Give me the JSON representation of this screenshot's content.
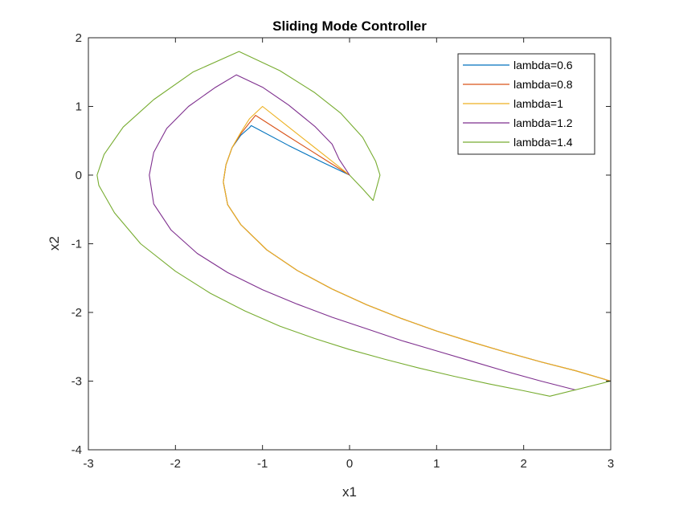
{
  "chart_data": {
    "type": "line",
    "title": "Sliding Mode Controller",
    "xlabel": "x1",
    "ylabel": "x2",
    "xlim": [
      -3,
      3
    ],
    "ylim": [
      -4,
      2
    ],
    "xticks": [
      "-3",
      "-2",
      "-1",
      "0",
      "1",
      "2",
      "3"
    ],
    "yticks": [
      "-4",
      "-3",
      "-2",
      "-1",
      "0",
      "1",
      "2"
    ],
    "grid": false,
    "legend_position": "top-right",
    "series": [
      {
        "name": "lambda=0.6",
        "color": "#0072BD",
        "x": [
          3,
          2.6,
          2.2,
          1.8,
          1.4,
          1.0,
          0.6,
          0.2,
          -0.2,
          -0.6,
          -0.95,
          -1.25,
          -1.4,
          -1.45,
          -1.42,
          -1.35,
          -1.25,
          -1.15,
          -1.13,
          -0.7,
          -0.3,
          0
        ],
        "y": [
          -3.0,
          -2.85,
          -2.72,
          -2.58,
          -2.43,
          -2.27,
          -2.09,
          -1.89,
          -1.66,
          -1.39,
          -1.09,
          -0.72,
          -0.43,
          -0.1,
          0.15,
          0.4,
          0.58,
          0.69,
          0.72,
          0.43,
          0.18,
          0
        ]
      },
      {
        "name": "lambda=0.8",
        "color": "#D95319",
        "x": [
          3,
          2.6,
          2.2,
          1.8,
          1.4,
          1.0,
          0.6,
          0.2,
          -0.2,
          -0.6,
          -0.95,
          -1.25,
          -1.4,
          -1.45,
          -1.42,
          -1.35,
          -1.25,
          -1.15,
          -1.08,
          -0.7,
          -0.3,
          0
        ],
        "y": [
          -3.0,
          -2.85,
          -2.72,
          -2.58,
          -2.43,
          -2.27,
          -2.09,
          -1.89,
          -1.66,
          -1.39,
          -1.09,
          -0.72,
          -0.43,
          -0.1,
          0.15,
          0.4,
          0.6,
          0.76,
          0.87,
          0.56,
          0.24,
          0
        ]
      },
      {
        "name": "lambda=1",
        "color": "#EDB120",
        "x": [
          3,
          2.6,
          2.2,
          1.8,
          1.4,
          1.0,
          0.6,
          0.2,
          -0.2,
          -0.6,
          -0.95,
          -1.25,
          -1.4,
          -1.45,
          -1.42,
          -1.35,
          -1.25,
          -1.15,
          -1.0,
          -0.7,
          -0.3,
          0
        ],
        "y": [
          -3.0,
          -2.85,
          -2.72,
          -2.58,
          -2.43,
          -2.27,
          -2.09,
          -1.89,
          -1.66,
          -1.39,
          -1.09,
          -0.72,
          -0.43,
          -0.1,
          0.15,
          0.4,
          0.62,
          0.82,
          1.0,
          0.7,
          0.3,
          0
        ]
      },
      {
        "name": "lambda=1.2",
        "color": "#7E2F8E",
        "x": [
          2.6,
          2.2,
          1.8,
          1.4,
          1.0,
          0.6,
          0.2,
          -0.2,
          -0.6,
          -1.0,
          -1.4,
          -1.75,
          -2.05,
          -2.25,
          -2.3,
          -2.25,
          -2.1,
          -1.85,
          -1.55,
          -1.3,
          -1.0,
          -0.7,
          -0.4,
          -0.2,
          -0.12,
          0
        ],
        "y": [
          -3.13,
          -3.0,
          -2.86,
          -2.71,
          -2.56,
          -2.41,
          -2.24,
          -2.07,
          -1.88,
          -1.67,
          -1.42,
          -1.14,
          -0.8,
          -0.42,
          0.0,
          0.33,
          0.68,
          1.0,
          1.27,
          1.46,
          1.28,
          1.02,
          0.71,
          0.45,
          0.23,
          0
        ]
      },
      {
        "name": "lambda=1.4",
        "color": "#77AC30",
        "x": [
          3,
          2.3,
          2.0,
          1.6,
          1.2,
          0.8,
          0.4,
          0.0,
          -0.4,
          -0.8,
          -1.2,
          -1.6,
          -2.0,
          -2.4,
          -2.7,
          -2.88,
          -2.9,
          -2.82,
          -2.6,
          -2.25,
          -1.8,
          -1.27,
          -0.8,
          -0.4,
          -0.1,
          0.15,
          0.3,
          0.35,
          0.27,
          0.15,
          0
        ],
        "y": [
          -3.0,
          -3.22,
          -3.14,
          -3.04,
          -2.93,
          -2.81,
          -2.68,
          -2.54,
          -2.38,
          -2.2,
          -1.98,
          -1.72,
          -1.4,
          -1.0,
          -0.55,
          -0.15,
          0.0,
          0.3,
          0.7,
          1.1,
          1.5,
          1.8,
          1.52,
          1.2,
          0.9,
          0.55,
          0.2,
          0.0,
          -0.37,
          -0.2,
          0
        ]
      }
    ]
  }
}
